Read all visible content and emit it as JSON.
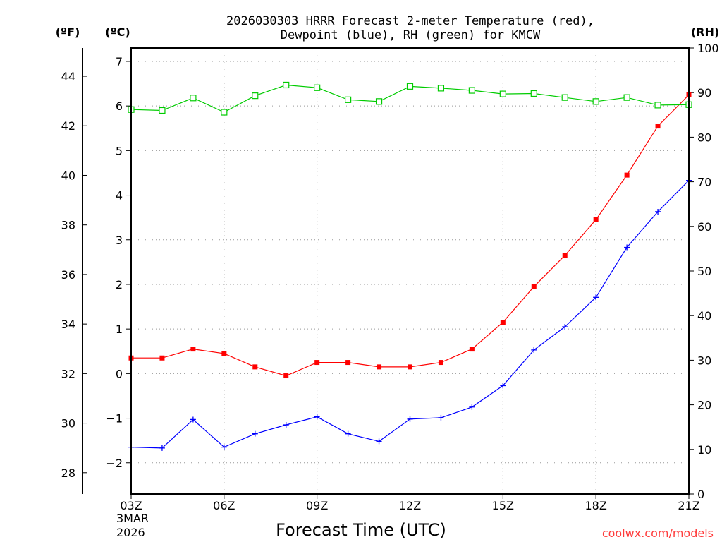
{
  "chart_data": {
    "type": "line",
    "title_line1": "2026030303 HRRR Forecast 2-meter Temperature (red),",
    "title_line2": "Dewpoint (blue), RH (green) for KMCW",
    "xlabel": "Forecast Time (UTC)",
    "credit": "coolwx.com/models",
    "left_unit_f": "(ºF)",
    "left_unit_c": "(ºC)",
    "right_unit": "(RH)",
    "date_line1": "3MAR",
    "date_line2": "2026",
    "x_hours": [
      3,
      4,
      5,
      6,
      7,
      8,
      9,
      10,
      11,
      12,
      13,
      14,
      15,
      16,
      17,
      18,
      19,
      20,
      21
    ],
    "x_ticks": [
      3,
      6,
      9,
      12,
      15,
      18,
      21
    ],
    "x_tick_labels": [
      "03Z",
      "06Z",
      "09Z",
      "12Z",
      "15Z",
      "18Z",
      "21Z"
    ],
    "xlim": [
      3,
      21
    ],
    "c_lim": [
      -2.7,
      7.3
    ],
    "c_ticks": [
      -2,
      -1,
      0,
      1,
      2,
      3,
      4,
      5,
      6,
      7
    ],
    "c_tick_labels": [
      "−2",
      "−1",
      "0",
      "1",
      "2",
      "3",
      "4",
      "5",
      "6",
      "7"
    ],
    "f_ticks": [
      28,
      30,
      32,
      34,
      36,
      38,
      40,
      42,
      44
    ],
    "f_tick_labels": [
      "28",
      "30",
      "32",
      "34",
      "36",
      "38",
      "40",
      "42",
      "44"
    ],
    "rh_lim": [
      0,
      100
    ],
    "rh_ticks": [
      0,
      10,
      20,
      30,
      40,
      50,
      60,
      70,
      80,
      90,
      100
    ],
    "rh_tick_labels": [
      "0",
      "10",
      "20",
      "30",
      "40",
      "50",
      "60",
      "70",
      "80",
      "90",
      "100"
    ],
    "colors": {
      "temperature": "#ff0000",
      "dewpoint": "#0000ff",
      "rh": "#00cc00"
    },
    "series": [
      {
        "name": "Temperature (°C)",
        "axis": "c",
        "color": "#ff0000",
        "marker": "filled-square",
        "values": [
          0.35,
          0.35,
          0.55,
          0.45,
          0.15,
          -0.05,
          0.25,
          0.25,
          0.15,
          0.15,
          0.25,
          0.55,
          1.15,
          1.95,
          2.65,
          3.45,
          4.45,
          5.55,
          6.25
        ]
      },
      {
        "name": "Dewpoint (°C)",
        "axis": "c",
        "color": "#0000ff",
        "marker": "plus",
        "values": [
          -1.65,
          -1.67,
          -1.03,
          -1.65,
          -1.35,
          -1.15,
          -0.97,
          -1.35,
          -1.52,
          -1.02,
          -0.99,
          -0.75,
          -0.27,
          0.53,
          1.05,
          1.71,
          2.83,
          3.63,
          4.33
        ]
      },
      {
        "name": "RH (%)",
        "axis": "rh",
        "color": "#00cc00",
        "marker": "open-square",
        "values": [
          86.2,
          86.0,
          88.8,
          85.6,
          89.3,
          91.7,
          91.1,
          88.4,
          88.0,
          91.4,
          91.0,
          90.5,
          89.7,
          89.8,
          88.9,
          88.0,
          88.9,
          87.2,
          87.3
        ]
      }
    ]
  }
}
